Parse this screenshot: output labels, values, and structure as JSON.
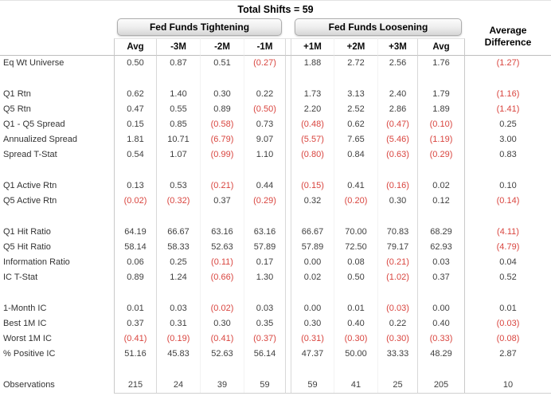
{
  "title": "Total Shifts = 59",
  "header": {
    "tightening_label": "Fed Funds Tightening",
    "loosening_label": "Fed Funds Loosening",
    "avg_difference_line1": "Average",
    "avg_difference_line2": "Difference",
    "columns": [
      "Avg",
      "-3M",
      "-2M",
      "-1M",
      "+1M",
      "+2M",
      "+3M",
      "Avg"
    ]
  },
  "colors": {
    "negative_value": "#d9453f",
    "body_text": "#3f3f3f",
    "header_text": "#000000",
    "group_box_border": "#adadad",
    "grid_line": "#c9c9c9"
  },
  "chart_data": {
    "type": "table",
    "title": "Total Shifts = 59",
    "column_groups": [
      "Fed Funds Tightening",
      "Fed Funds Loosening",
      "Average Difference"
    ],
    "columns": [
      "Avg",
      "-3M",
      "-2M",
      "-1M",
      "+1M",
      "+2M",
      "+3M",
      "Avg",
      "Average Difference"
    ],
    "negative_format": "parentheses shown in red",
    "sections": [
      {
        "rows": [
          {
            "label": "Eq Wt Universe",
            "values": [
              "0.50",
              "0.87",
              "0.51",
              "(0.27)",
              "1.88",
              "2.72",
              "2.56",
              "1.76",
              "(1.27)"
            ]
          }
        ]
      },
      {
        "rows": [
          {
            "label": "Q1 Rtn",
            "values": [
              "0.62",
              "1.40",
              "0.30",
              "0.22",
              "1.73",
              "3.13",
              "2.40",
              "1.79",
              "(1.16)"
            ]
          },
          {
            "label": "Q5 Rtn",
            "values": [
              "0.47",
              "0.55",
              "0.89",
              "(0.50)",
              "2.20",
              "2.52",
              "2.86",
              "1.89",
              "(1.41)"
            ]
          },
          {
            "label": "Q1 - Q5 Spread",
            "values": [
              "0.15",
              "0.85",
              "(0.58)",
              "0.73",
              "(0.48)",
              "0.62",
              "(0.47)",
              "(0.10)",
              "0.25"
            ]
          },
          {
            "label": "Annualized Spread",
            "values": [
              "1.81",
              "10.71",
              "(6.79)",
              "9.07",
              "(5.57)",
              "7.65",
              "(5.46)",
              "(1.19)",
              "3.00"
            ]
          },
          {
            "label": "Spread T-Stat",
            "values": [
              "0.54",
              "1.07",
              "(0.99)",
              "1.10",
              "(0.80)",
              "0.84",
              "(0.63)",
              "(0.29)",
              "0.83"
            ]
          }
        ]
      },
      {
        "rows": [
          {
            "label": "Q1 Active Rtn",
            "values": [
              "0.13",
              "0.53",
              "(0.21)",
              "0.44",
              "(0.15)",
              "0.41",
              "(0.16)",
              "0.02",
              "0.10"
            ]
          },
          {
            "label": "Q5 Active Rtn",
            "values": [
              "(0.02)",
              "(0.32)",
              "0.37",
              "(0.29)",
              "0.32",
              "(0.20)",
              "0.30",
              "0.12",
              "(0.14)"
            ]
          }
        ]
      },
      {
        "rows": [
          {
            "label": "Q1 Hit Ratio",
            "values": [
              "64.19",
              "66.67",
              "63.16",
              "63.16",
              "66.67",
              "70.00",
              "70.83",
              "68.29",
              "(4.11)"
            ]
          },
          {
            "label": "Q5 Hit Ratio",
            "values": [
              "58.14",
              "58.33",
              "52.63",
              "57.89",
              "57.89",
              "72.50",
              "79.17",
              "62.93",
              "(4.79)"
            ]
          },
          {
            "label": "Information Ratio",
            "values": [
              "0.06",
              "0.25",
              "(0.11)",
              "0.17",
              "0.00",
              "0.08",
              "(0.21)",
              "0.03",
              "0.04"
            ]
          },
          {
            "label": "IC T-Stat",
            "values": [
              "0.89",
              "1.24",
              "(0.66)",
              "1.30",
              "0.02",
              "0.50",
              "(1.02)",
              "0.37",
              "0.52"
            ]
          }
        ]
      },
      {
        "rows": [
          {
            "label": "1-Month IC",
            "values": [
              "0.01",
              "0.03",
              "(0.02)",
              "0.03",
              "0.00",
              "0.01",
              "(0.03)",
              "0.00",
              "0.01"
            ]
          },
          {
            "label": "Best 1M IC",
            "values": [
              "0.37",
              "0.31",
              "0.30",
              "0.35",
              "0.30",
              "0.40",
              "0.22",
              "0.40",
              "(0.03)"
            ]
          },
          {
            "label": "Worst 1M IC",
            "values": [
              "(0.41)",
              "(0.19)",
              "(0.41)",
              "(0.37)",
              "(0.31)",
              "(0.30)",
              "(0.30)",
              "(0.33)",
              "(0.08)"
            ]
          },
          {
            "label": "% Positive IC",
            "values": [
              "51.16",
              "45.83",
              "52.63",
              "56.14",
              "47.37",
              "50.00",
              "33.33",
              "48.29",
              "2.87"
            ]
          }
        ]
      },
      {
        "rows": [
          {
            "label": "Observations",
            "values": [
              "215",
              "24",
              "39",
              "59",
              "59",
              "41",
              "25",
              "205",
              "10"
            ]
          }
        ]
      }
    ]
  }
}
